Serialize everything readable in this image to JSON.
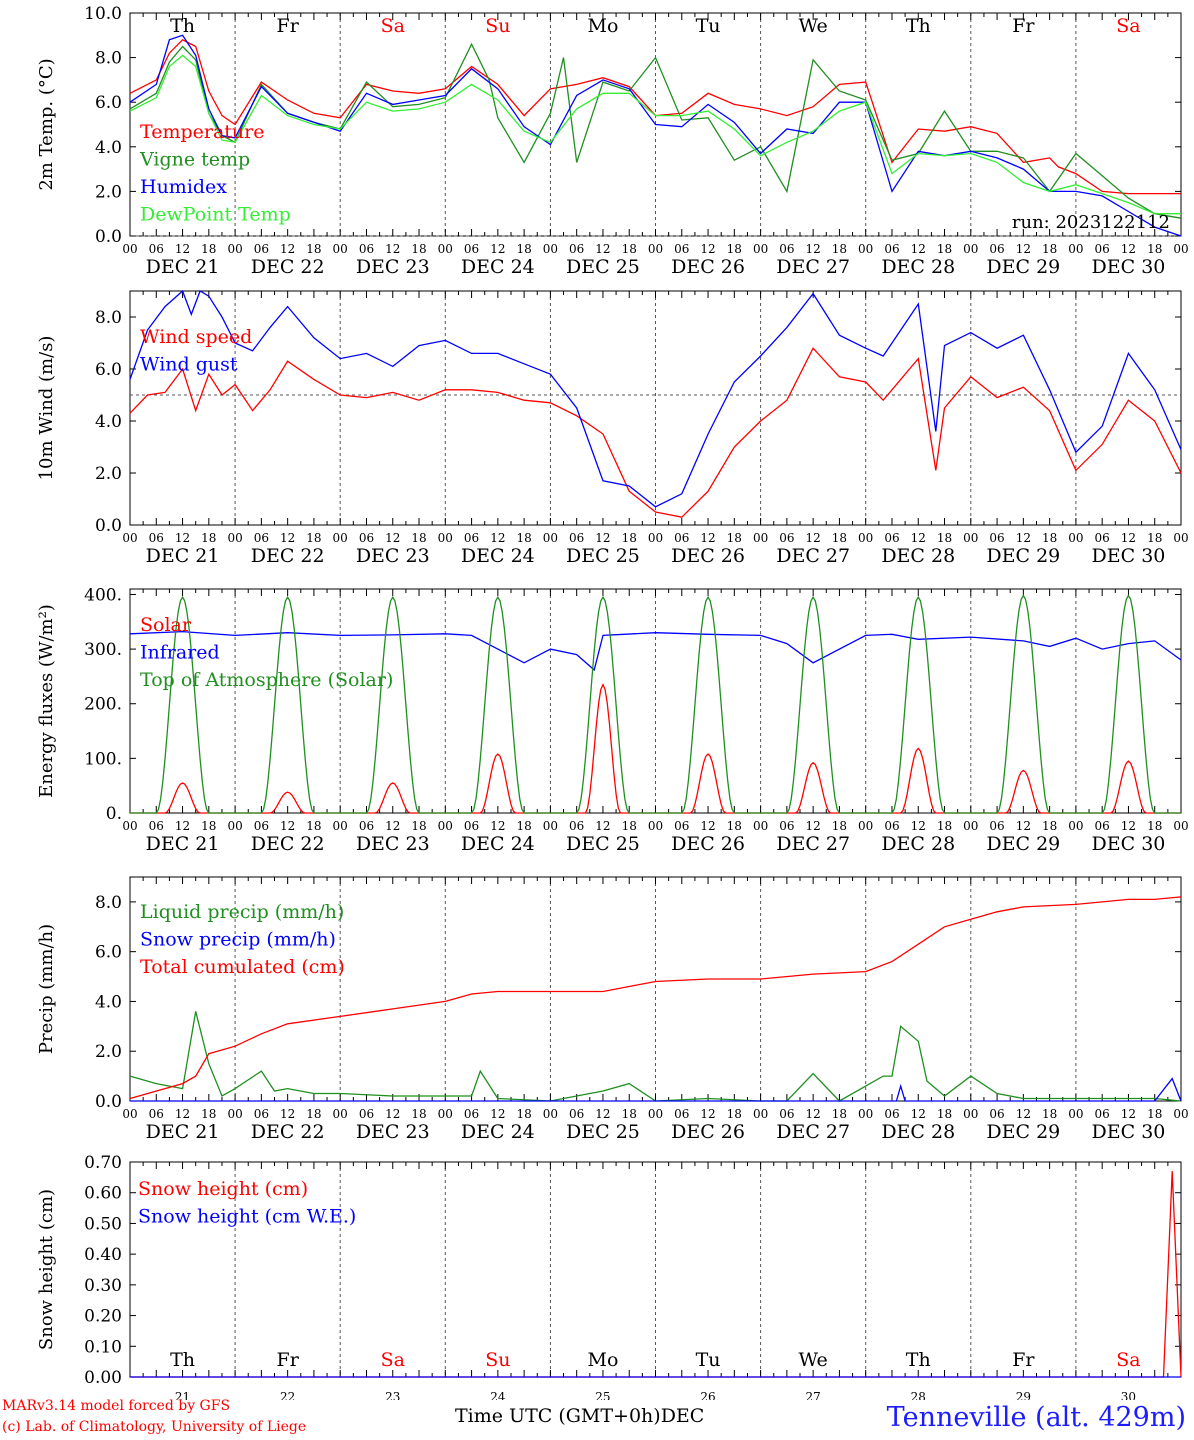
{
  "colors": {
    "red": "#ff0000",
    "darkgreen": "#1f8f1f",
    "blue": "#0000ff",
    "lightgreen": "#33ee33",
    "station": "#1c1cff",
    "snow_blue": "#7030a0"
  },
  "time_axis": {
    "hour_ticks": [
      "00",
      "06",
      "12",
      "18"
    ],
    "last_tick": "00",
    "days": [
      "DEC 21",
      "DEC 22",
      "DEC 23",
      "DEC 24",
      "DEC 25",
      "DEC 26",
      "DEC 27",
      "DEC 28",
      "DEC 29",
      "DEC 30"
    ],
    "weekdays": [
      "Th",
      "Fr",
      "Sa",
      "Su",
      "Mo",
      "Tu",
      "We",
      "Th",
      "Fr",
      "Sa"
    ],
    "weekday_colors": [
      "#000000",
      "#000000",
      "#ff0000",
      "#ff0000",
      "#000000",
      "#000000",
      "#000000",
      "#000000",
      "#000000",
      "#ff0000"
    ],
    "day_numbers": [
      "21",
      "22",
      "23",
      "24",
      "25",
      "26",
      "27",
      "28",
      "29",
      "30"
    ],
    "bottom_month": "DEC"
  },
  "footer": {
    "model_line": "MARv3.14 model forced by GFS",
    "credit_line": "(c) Lab. of Climatology, University of Liege",
    "xlabel": "Time UTC (GMT+0h)",
    "station": "Tenneville (alt. 429m)"
  },
  "chart_data": [
    {
      "type": "line",
      "ylabel": "2m Temp. (°C)",
      "ylim": [
        0,
        10
      ],
      "yticks": [
        0,
        2,
        4,
        6,
        8,
        10
      ],
      "ytick_labels": [
        "0.0",
        "2.0",
        "4.0",
        "6.0",
        "8.0",
        "10.0"
      ],
      "dashed_reference": 0,
      "annotation": "run: 2023122112",
      "x_unit": "hours since DEC 21 00 UTC",
      "series": [
        {
          "name": "Temperature",
          "color": "#ff0000",
          "x": [
            0,
            6,
            9,
            12,
            15,
            18,
            21,
            24,
            30,
            36,
            42,
            48,
            54,
            60,
            66,
            72,
            78,
            84,
            90,
            96,
            102,
            108,
            114,
            120,
            126,
            132,
            138,
            144,
            150,
            156,
            162,
            168,
            174,
            180,
            186,
            192,
            198,
            204,
            210,
            212,
            216,
            222,
            228,
            234,
            240
          ],
          "y": [
            6.4,
            7.0,
            8.2,
            8.8,
            8.5,
            6.5,
            5.4,
            5.0,
            6.9,
            6.1,
            5.5,
            5.3,
            6.8,
            6.5,
            6.4,
            6.6,
            7.6,
            6.8,
            5.4,
            6.6,
            6.8,
            7.1,
            6.7,
            5.4,
            5.5,
            6.4,
            5.9,
            5.7,
            5.4,
            5.8,
            6.8,
            6.9,
            3.3,
            4.8,
            4.7,
            4.9,
            4.6,
            3.3,
            3.5,
            3.1,
            2.8,
            2.0,
            1.9,
            1.9,
            1.9
          ]
        },
        {
          "name": "Vigne temp",
          "color": "#1f8f1f",
          "x": [
            0,
            6,
            9,
            12,
            15,
            18,
            21,
            24,
            30,
            36,
            42,
            48,
            54,
            60,
            66,
            72,
            78,
            82,
            84,
            90,
            96,
            99,
            102,
            108,
            114,
            120,
            126,
            132,
            138,
            144,
            150,
            156,
            162,
            168,
            174,
            180,
            186,
            192,
            198,
            204,
            210,
            216,
            222,
            228,
            234,
            240
          ],
          "y": [
            5.7,
            6.4,
            7.8,
            8.5,
            7.9,
            5.5,
            4.5,
            4.2,
            6.8,
            5.5,
            5.1,
            4.8,
            6.9,
            5.8,
            5.9,
            6.2,
            8.6,
            7.0,
            5.3,
            3.3,
            5.5,
            8.0,
            3.3,
            6.9,
            6.5,
            8.0,
            5.2,
            5.3,
            3.4,
            4.0,
            2.0,
            7.9,
            6.5,
            6.1,
            3.4,
            3.7,
            5.6,
            3.8,
            3.8,
            3.5,
            2.0,
            3.7,
            2.7,
            1.7,
            1.0,
            0.8
          ]
        },
        {
          "name": "Humidex",
          "color": "#0000ff",
          "x": [
            0,
            6,
            9,
            12,
            15,
            18,
            21,
            24,
            30,
            36,
            42,
            48,
            54,
            60,
            66,
            72,
            78,
            84,
            90,
            96,
            102,
            108,
            114,
            120,
            126,
            132,
            138,
            144,
            150,
            156,
            162,
            168,
            174,
            180,
            186,
            192,
            198,
            204,
            210,
            216,
            222,
            228,
            234,
            240
          ],
          "y": [
            6.0,
            6.8,
            8.8,
            9.0,
            8.1,
            5.7,
            4.5,
            4.4,
            6.7,
            5.5,
            5.1,
            4.7,
            6.4,
            5.9,
            6.1,
            6.3,
            7.5,
            6.6,
            4.9,
            4.1,
            6.3,
            7.0,
            6.6,
            5.0,
            4.9,
            5.9,
            5.1,
            3.7,
            4.8,
            4.6,
            6.0,
            6.0,
            2.0,
            3.8,
            3.6,
            3.8,
            3.5,
            3.0,
            2.0,
            2.0,
            1.8,
            1.1,
            0.4,
            0.0
          ]
        },
        {
          "name": "DewPoint Temp",
          "color": "#33ee33",
          "x": [
            0,
            6,
            9,
            12,
            15,
            18,
            21,
            24,
            30,
            36,
            42,
            48,
            54,
            60,
            66,
            72,
            78,
            84,
            90,
            96,
            102,
            108,
            114,
            120,
            126,
            132,
            138,
            144,
            150,
            156,
            162,
            168,
            174,
            180,
            186,
            192,
            198,
            204,
            210,
            216,
            222,
            228,
            234,
            240
          ],
          "y": [
            5.6,
            6.2,
            7.6,
            8.1,
            7.6,
            5.5,
            4.3,
            4.2,
            6.3,
            5.4,
            5.0,
            4.8,
            6.0,
            5.6,
            5.7,
            6.0,
            6.8,
            6.1,
            4.7,
            4.2,
            5.7,
            6.4,
            6.4,
            5.4,
            5.4,
            5.6,
            4.8,
            3.6,
            4.2,
            4.7,
            5.6,
            6.0,
            2.8,
            3.7,
            3.6,
            3.7,
            3.3,
            2.4,
            2.0,
            2.3,
            1.9,
            1.5,
            1.0,
            1.0
          ]
        }
      ]
    },
    {
      "type": "line",
      "ylabel": "10m Wind (m/s)",
      "ylim": [
        0,
        9
      ],
      "yticks": [
        0,
        2,
        4,
        6,
        8
      ],
      "ytick_labels": [
        "0.0",
        "2.0",
        "4.0",
        "6.0",
        "8.0"
      ],
      "dashed_reference": 5,
      "x_unit": "hours since DEC 21 00 UTC",
      "series": [
        {
          "name": "Wind speed",
          "color": "#ff0000",
          "x": [
            0,
            4,
            8,
            12,
            15,
            18,
            21,
            24,
            28,
            32,
            36,
            42,
            48,
            54,
            60,
            66,
            72,
            78,
            84,
            90,
            96,
            102,
            108,
            114,
            120,
            126,
            132,
            138,
            144,
            150,
            156,
            162,
            168,
            172,
            180,
            184,
            186,
            192,
            198,
            204,
            210,
            216,
            222,
            228,
            234,
            240
          ],
          "y": [
            4.3,
            5.0,
            5.1,
            6.0,
            4.4,
            5.8,
            5.0,
            5.4,
            4.4,
            5.2,
            6.3,
            5.6,
            5.0,
            4.9,
            5.1,
            4.8,
            5.2,
            5.2,
            5.1,
            4.8,
            4.7,
            4.2,
            3.5,
            1.3,
            0.5,
            0.3,
            1.3,
            3.0,
            4.0,
            4.8,
            6.8,
            5.7,
            5.5,
            4.8,
            6.4,
            2.1,
            4.5,
            5.7,
            4.9,
            5.3,
            4.4,
            2.1,
            3.1,
            4.8,
            4.0,
            2.0
          ]
        },
        {
          "name": "Wind gust",
          "color": "#0000ff",
          "x": [
            0,
            4,
            8,
            12,
            14,
            16,
            18,
            21,
            24,
            28,
            32,
            36,
            42,
            48,
            54,
            60,
            66,
            72,
            78,
            84,
            90,
            96,
            102,
            108,
            114,
            120,
            126,
            132,
            138,
            144,
            150,
            156,
            162,
            168,
            172,
            180,
            184,
            186,
            192,
            198,
            204,
            210,
            216,
            222,
            228,
            234,
            240
          ],
          "y": [
            5.6,
            7.5,
            8.4,
            9.0,
            8.1,
            9.0,
            8.8,
            8.0,
            7.0,
            6.7,
            7.6,
            8.4,
            7.2,
            6.4,
            6.6,
            6.1,
            6.9,
            7.1,
            6.6,
            6.6,
            6.2,
            5.8,
            4.5,
            1.7,
            1.5,
            0.7,
            1.2,
            3.5,
            5.5,
            6.5,
            7.6,
            8.9,
            7.3,
            6.8,
            6.5,
            8.5,
            3.6,
            6.9,
            7.4,
            6.8,
            7.3,
            5.2,
            2.8,
            3.8,
            6.6,
            5.2,
            2.9
          ]
        }
      ]
    },
    {
      "type": "line",
      "ylabel": "Energy fluxes (W/m²)",
      "ylim": [
        0,
        410
      ],
      "yticks": [
        0,
        100,
        200,
        300,
        400
      ],
      "ytick_labels": [
        "0.",
        "100.",
        "200.",
        "300.",
        "400."
      ],
      "x_unit": "hours since DEC 21 00 UTC",
      "daily_peaks": {
        "Solar": [
          55,
          38,
          55,
          108,
          235,
          108,
          92,
          118,
          78,
          95
        ],
        "Top of Atmosphere (Solar)": [
          395,
          395,
          395,
          395,
          395,
          395,
          395,
          395,
          398,
          398
        ]
      },
      "series": [
        {
          "name": "Solar",
          "color": "#ff0000"
        },
        {
          "name": "Infrared",
          "color": "#0000ff",
          "x": [
            0,
            12,
            24,
            36,
            48,
            60,
            72,
            78,
            84,
            90,
            96,
            102,
            106,
            108,
            120,
            132,
            144,
            150,
            156,
            168,
            174,
            180,
            192,
            204,
            210,
            216,
            222,
            228,
            234,
            240
          ],
          "y": [
            328,
            332,
            325,
            330,
            325,
            326,
            328,
            325,
            300,
            275,
            300,
            290,
            262,
            325,
            330,
            327,
            325,
            310,
            275,
            325,
            327,
            318,
            322,
            315,
            305,
            320,
            300,
            310,
            315,
            280
          ]
        },
        {
          "name": "Top of Atmosphere (Solar)",
          "color": "#1f8f1f"
        }
      ]
    },
    {
      "type": "line",
      "ylabel": "Precip (mm/h)",
      "ylim": [
        0,
        9
      ],
      "yticks": [
        0,
        2,
        4,
        6,
        8
      ],
      "ytick_labels": [
        "0.0",
        "2.0",
        "4.0",
        "6.0",
        "8.0"
      ],
      "x_unit": "hours since DEC 21 00 UTC",
      "series": [
        {
          "name": "Liquid precip (mm/h)",
          "color": "#1f8f1f",
          "x": [
            0,
            6,
            12,
            15,
            18,
            21,
            24,
            30,
            33,
            36,
            42,
            48,
            60,
            72,
            78,
            80,
            84,
            96,
            108,
            114,
            120,
            132,
            144,
            150,
            156,
            162,
            168,
            172,
            174,
            176,
            180,
            182,
            186,
            192,
            198,
            204,
            210,
            216,
            222,
            228,
            234,
            240
          ],
          "y": [
            1.0,
            0.7,
            0.5,
            3.6,
            1.5,
            0.2,
            0.5,
            1.2,
            0.4,
            0.5,
            0.3,
            0.3,
            0.2,
            0.2,
            0.2,
            1.2,
            0.1,
            0.0,
            0.4,
            0.7,
            0.0,
            0.1,
            0.0,
            0.0,
            1.1,
            0.0,
            0.6,
            1.0,
            1.0,
            3.0,
            2.4,
            0.8,
            0.2,
            1.0,
            0.3,
            0.1,
            0.1,
            0.1,
            0.1,
            0.1,
            0.1,
            0.0
          ]
        },
        {
          "name": "Snow precip (mm/h)",
          "color": "#0000ff",
          "x": [
            0,
            175,
            176,
            177,
            234,
            238,
            240
          ],
          "y": [
            0.0,
            0.0,
            0.6,
            0.0,
            0.0,
            0.9,
            0.0
          ]
        },
        {
          "name": "Total cumulated (cm)",
          "color": "#ff0000",
          "x": [
            0,
            12,
            15,
            18,
            24,
            30,
            36,
            48,
            60,
            72,
            78,
            84,
            96,
            108,
            114,
            120,
            132,
            144,
            156,
            168,
            174,
            180,
            186,
            192,
            198,
            204,
            216,
            228,
            234,
            240
          ],
          "y": [
            0.1,
            0.7,
            1.0,
            1.9,
            2.2,
            2.7,
            3.1,
            3.4,
            3.7,
            4.0,
            4.3,
            4.4,
            4.4,
            4.4,
            4.6,
            4.8,
            4.9,
            4.9,
            5.1,
            5.2,
            5.6,
            6.3,
            7.0,
            7.3,
            7.6,
            7.8,
            7.9,
            8.1,
            8.1,
            8.2
          ]
        }
      ]
    },
    {
      "type": "line",
      "ylabel": "Snow height (cm)",
      "ylim": [
        0,
        0.7
      ],
      "yticks": [
        0,
        0.1,
        0.2,
        0.3,
        0.4,
        0.5,
        0.6,
        0.7
      ],
      "ytick_labels": [
        "0.00",
        "0.10",
        "0.20",
        "0.30",
        "0.40",
        "0.50",
        "0.60",
        "0.70"
      ],
      "x_unit": "hours since DEC 21 00 UTC",
      "series": [
        {
          "name": "Snow height (cm)",
          "color": "#ff0000",
          "x": [
            0,
            236,
            238,
            240
          ],
          "y": [
            0,
            0,
            0.67,
            0
          ]
        },
        {
          "name": "Snow height (cm W.E.)",
          "color": "#0000ff",
          "x": [
            0,
            240
          ],
          "y": [
            0,
            0
          ]
        }
      ]
    }
  ]
}
